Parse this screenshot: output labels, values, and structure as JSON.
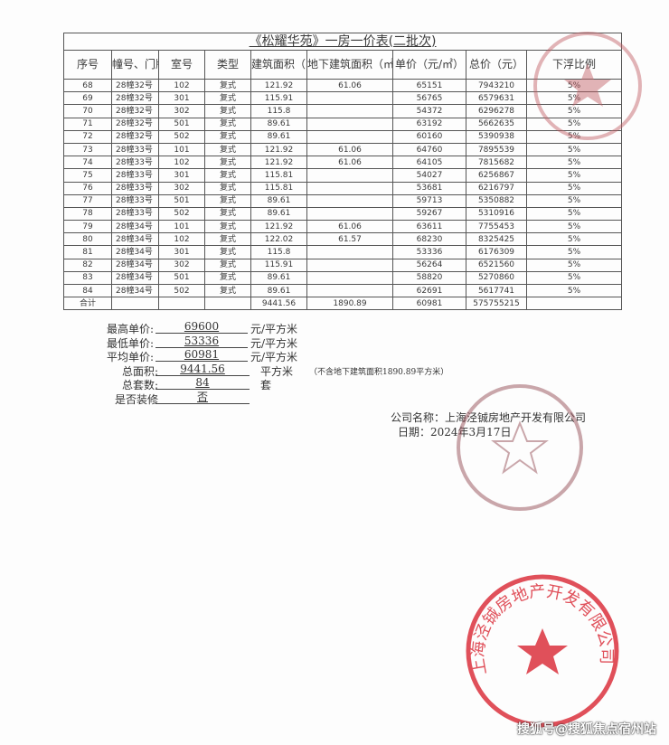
{
  "title": "《松耀华苑》一房一价表(二批次)",
  "headers": [
    "序号",
    "幢号、门牌号",
    "室号",
    "类型",
    "建筑面积（㎡）",
    "地下建筑面积（㎡）",
    "单价（元/㎡）",
    "总价（元）",
    "下浮比例"
  ],
  "rows": [
    [
      "68",
      "28幢32号",
      "102",
      "复式",
      "121.92",
      "61.06",
      "65151",
      "7943210",
      "5%"
    ],
    [
      "69",
      "28幢32号",
      "301",
      "复式",
      "115.91",
      "",
      "56765",
      "6579631",
      "5%"
    ],
    [
      "70",
      "28幢32号",
      "302",
      "复式",
      "115.8",
      "",
      "54372",
      "6296278",
      "5%"
    ],
    [
      "71",
      "28幢32号",
      "501",
      "复式",
      "89.61",
      "",
      "63192",
      "5662635",
      "5%"
    ],
    [
      "72",
      "28幢32号",
      "502",
      "复式",
      "89.61",
      "",
      "60160",
      "5390938",
      "5%"
    ],
    [
      "73",
      "28幢33号",
      "101",
      "复式",
      "121.92",
      "61.06",
      "64760",
      "7895539",
      "5%"
    ],
    [
      "74",
      "28幢33号",
      "102",
      "复式",
      "121.92",
      "61.06",
      "64105",
      "7815682",
      "5%"
    ],
    [
      "75",
      "28幢33号",
      "301",
      "复式",
      "115.81",
      "",
      "54027",
      "6256867",
      "5%"
    ],
    [
      "76",
      "28幢33号",
      "302",
      "复式",
      "115.81",
      "",
      "53681",
      "6216797",
      "5%"
    ],
    [
      "77",
      "28幢33号",
      "501",
      "复式",
      "89.61",
      "",
      "59713",
      "5350882",
      "5%"
    ],
    [
      "78",
      "28幢33号",
      "502",
      "复式",
      "89.61",
      "",
      "59267",
      "5310916",
      "5%"
    ],
    [
      "79",
      "28幢34号",
      "101",
      "复式",
      "121.92",
      "61.06",
      "63611",
      "7755453",
      "5%"
    ],
    [
      "80",
      "28幢34号",
      "102",
      "复式",
      "122.02",
      "61.57",
      "68230",
      "8325425",
      "5%"
    ],
    [
      "81",
      "28幢34号",
      "301",
      "复式",
      "115.8",
      "",
      "53336",
      "6176309",
      "5%"
    ],
    [
      "82",
      "28幢34号",
      "302",
      "复式",
      "115.91",
      "",
      "56264",
      "6521560",
      "5%"
    ],
    [
      "83",
      "28幢34号",
      "501",
      "复式",
      "89.61",
      "",
      "58820",
      "5270860",
      "5%"
    ],
    [
      "84",
      "28幢34号",
      "502",
      "复式",
      "89.61",
      "",
      "62691",
      "5617741",
      "5%"
    ]
  ],
  "total_row": [
    "合计",
    "",
    "",
    "",
    "9441.56",
    "1890.89",
    "60981",
    "575755215",
    ""
  ],
  "summary": [
    {
      "label": "最高单价:",
      "value": "69600",
      "unit": "元/平方米"
    },
    {
      "label": "最低单价:",
      "value": "53336",
      "unit": "元/平方米"
    },
    {
      "label": "平均单价:",
      "value": "60981",
      "unit": "元/平方米"
    },
    {
      "label": "总面积:",
      "value": "9441.56",
      "unit": "平方米",
      "note": "（不含地下建筑面积1890.89平方米）"
    },
    {
      "label": "总套数:",
      "value": "84",
      "unit": "套"
    },
    {
      "label": "是否装修",
      "value": "否",
      "unit": ""
    }
  ],
  "company": "公司名称：上海泾铖房地产开发有限公司",
  "date": "日期：2024年3月17日",
  "stamp_text": "上海泾铖房地产开发有限公司",
  "stamp_color": "#e0505a",
  "watermark": "搜狐号@搜狐焦点宿州站"
}
